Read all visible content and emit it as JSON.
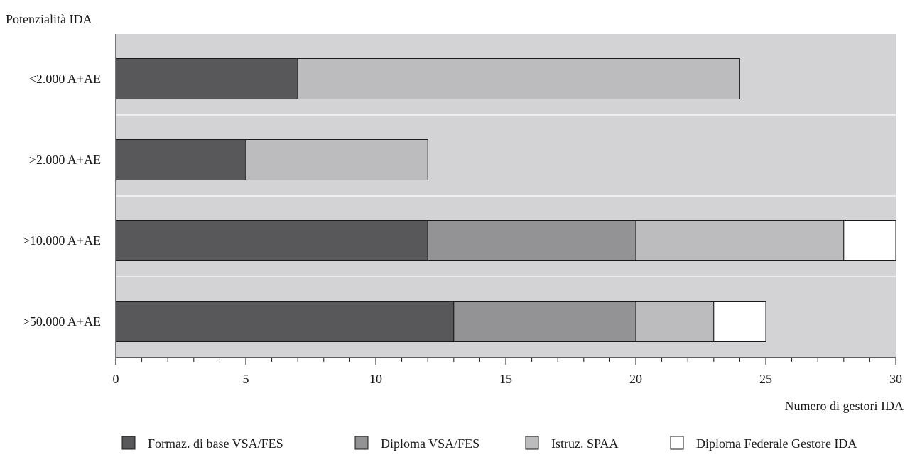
{
  "chart_data": {
    "type": "bar",
    "orientation": "horizontal",
    "stacked": true,
    "ylabel": "Potenzialità IDA",
    "xlabel": "Numero di gestori IDA",
    "categories": [
      ">50.000 A+AE",
      ">10.000 A+AE",
      ">2.000 A+AE",
      "<2.000 A+AE"
    ],
    "series": [
      {
        "name": "Formaz. di base VSA/FES",
        "color": "#58585a",
        "values": [
          13,
          12,
          5,
          7
        ]
      },
      {
        "name": "Diploma VSA/FES",
        "color": "#939396",
        "values": [
          7,
          8,
          0,
          0
        ]
      },
      {
        "name": "Istruz. SPAA",
        "color": "#bcbcbf",
        "values": [
          3,
          8,
          7,
          17
        ]
      },
      {
        "name": "Diploma Federale Gestore IDA",
        "color": "#ffffff",
        "values": [
          2,
          2,
          0,
          0
        ]
      }
    ],
    "xlim": [
      0,
      30
    ],
    "xticks": [
      0,
      5,
      10,
      15,
      20,
      25,
      30
    ],
    "minor_tick_step": 1,
    "grid": false,
    "background_color": "#d3d3d5",
    "legend_position": "bottom"
  }
}
